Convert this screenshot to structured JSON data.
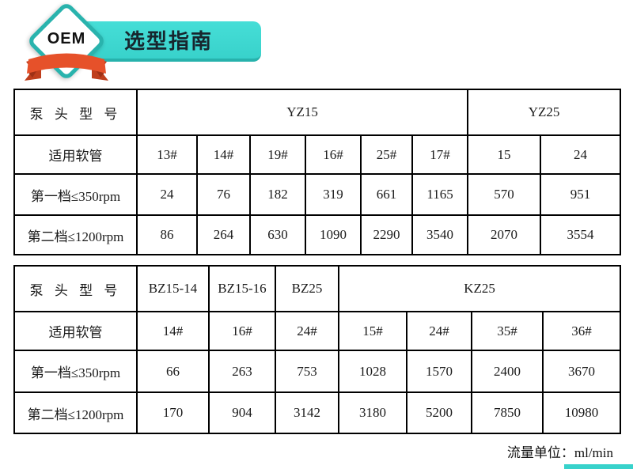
{
  "header": {
    "badge_label": "OEM",
    "banner_title": "选型指南"
  },
  "tables": [
    {
      "model_row": {
        "label": "泵 头 型 号",
        "groups": [
          {
            "name": "YZ15",
            "span": 6
          },
          {
            "name": "YZ25",
            "span": 2
          }
        ]
      },
      "rows": [
        {
          "label": "适用软管",
          "values": [
            "13#",
            "14#",
            "19#",
            "16#",
            "25#",
            "17#",
            "15",
            "24"
          ]
        },
        {
          "label": "第一档≤350rpm",
          "values": [
            "24",
            "76",
            "182",
            "319",
            "661",
            "1165",
            "570",
            "951"
          ]
        },
        {
          "label": "第二档≤1200rpm",
          "values": [
            "86",
            "264",
            "630",
            "1090",
            "2290",
            "3540",
            "2070",
            "3554"
          ]
        }
      ]
    },
    {
      "model_row": {
        "label": "泵 头 型 号",
        "groups": [
          {
            "name": "BZ15-14",
            "span": 1
          },
          {
            "name": "BZ15-16",
            "span": 1
          },
          {
            "name": "BZ25",
            "span": 1
          },
          {
            "name": "KZ25",
            "span": 4
          }
        ]
      },
      "rows": [
        {
          "label": "适用软管",
          "values": [
            "14#",
            "16#",
            "24#",
            "15#",
            "24#",
            "35#",
            "36#"
          ]
        },
        {
          "label": "第一档≤350rpm",
          "values": [
            "66",
            "263",
            "753",
            "1028",
            "1570",
            "2400",
            "3670"
          ]
        },
        {
          "label": "第二档≤1200rpm",
          "values": [
            "170",
            "904",
            "3142",
            "3180",
            "5200",
            "7850",
            "10980"
          ]
        }
      ]
    }
  ],
  "footer": {
    "unit_note": "流量单位：ml/min"
  },
  "colors": {
    "teal": "#38d2cb",
    "teal_border": "#29b3ad",
    "ribbon_red": "#e6512a",
    "ribbon_red_dark": "#bf3e1c",
    "table_border": "#000000"
  }
}
